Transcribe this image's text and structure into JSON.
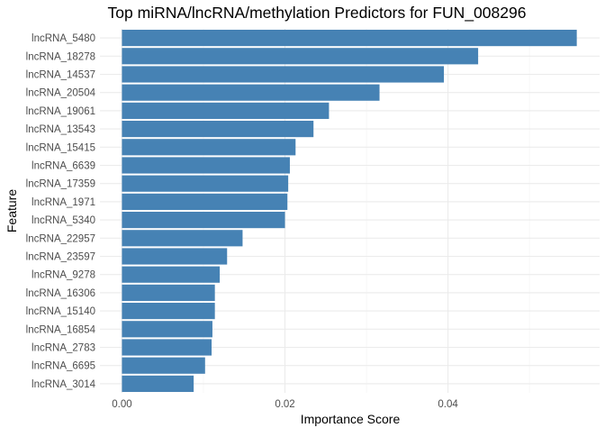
{
  "chart_data": {
    "type": "bar",
    "orientation": "horizontal",
    "title": "Top miRNA/lncRNA/methylation Predictors for FUN_008296",
    "xlabel": "Importance Score",
    "ylabel": "Feature",
    "xlim": [
      -0.0027,
      0.0586
    ],
    "xticks": [
      0.0,
      0.02,
      0.04
    ],
    "xtick_labels": [
      "0.00",
      "0.02",
      "0.04"
    ],
    "grid": true,
    "legend": "none",
    "bar_color": "#4682B4",
    "categories": [
      "lncRNA_5480",
      "lncRNA_18278",
      "lncRNA_14537",
      "lncRNA_20504",
      "lncRNA_19061",
      "lncRNA_13543",
      "lncRNA_15415",
      "lncRNA_6639",
      "lncRNA_17359",
      "lncRNA_1971",
      "lncRNA_5340",
      "lncRNA_22957",
      "lncRNA_23597",
      "lncRNA_9278",
      "lncRNA_16306",
      "lncRNA_15140",
      "lncRNA_16854",
      "lncRNA_2783",
      "lncRNA_6695",
      "lncRNA_3014"
    ],
    "values": [
      0.0558,
      0.0437,
      0.0395,
      0.0316,
      0.0254,
      0.0235,
      0.0213,
      0.0206,
      0.0204,
      0.0203,
      0.02,
      0.0148,
      0.0129,
      0.012,
      0.0114,
      0.0114,
      0.0111,
      0.011,
      0.0102,
      0.0088
    ]
  }
}
